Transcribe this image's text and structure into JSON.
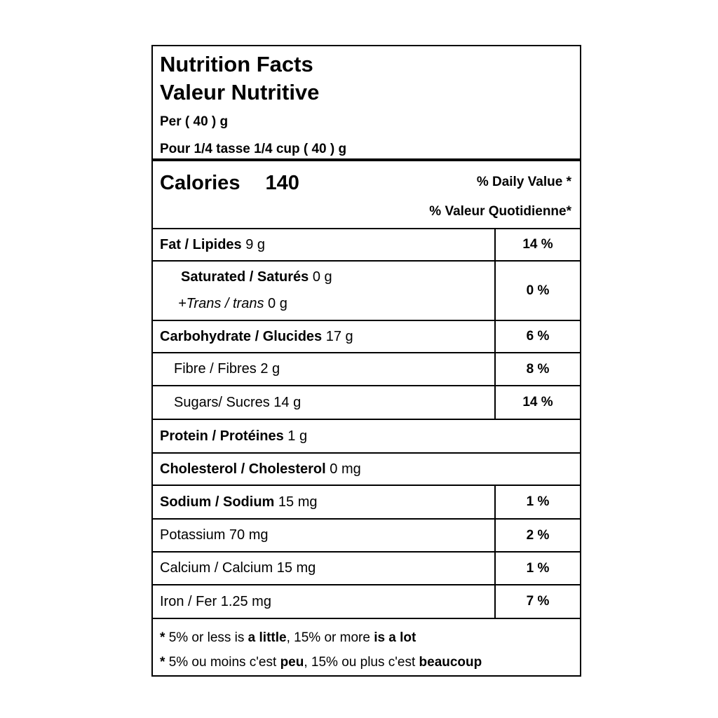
{
  "label": {
    "title_en": "Nutrition Facts",
    "title_fr": "Valeur Nutritive",
    "serving_en": "Per ( 40 ) g",
    "serving_fr": "Pour 1/4 tasse 1/4 cup ( 40 ) g",
    "calories_label": "Calories",
    "calories_value": "140",
    "daily_value_en": "% Daily Value *",
    "daily_value_fr": "% Valeur Quotidienne*"
  },
  "rows": [
    {
      "name": "Fat / Lipides",
      "amount": " 9 g",
      "percent": "14 %"
    },
    {
      "line1_name": "Saturated / Saturés",
      "line1_amount": " 0 g",
      "line2_name": "+Trans / trans",
      "line2_amount": " 0 g",
      "percent": "0 %"
    },
    {
      "name": "Carbohydrate / Glucides",
      "amount": " 17 g",
      "percent": "6 %"
    },
    {
      "name": "Fibre / Fibres",
      "amount": " 2 g",
      "percent": "8 %"
    },
    {
      "name": "Sugars/ Sucres",
      "amount": " 14 g",
      "percent": "14 %"
    },
    {
      "name": "Protein / Protéines",
      "amount": " 1 g",
      "percent": ""
    },
    {
      "name": "Cholesterol / Cholesterol",
      "amount": " 0 mg",
      "percent": ""
    },
    {
      "name": "Sodium / Sodium",
      "amount": " 15 mg",
      "percent": "1 %"
    },
    {
      "name": "Potassium",
      "amount": " 70 mg",
      "percent": "2 %"
    },
    {
      "name": "Calcium / Calcium",
      "amount": " 15 mg",
      "percent": "1 %"
    },
    {
      "name": "Iron / Fer",
      "amount": " 1.25 mg",
      "percent": "7 %"
    }
  ],
  "footnote": {
    "star": "* ",
    "en_seg1": "5% or less is ",
    "en_bold1": "a little",
    "en_seg2": ", 15% or more ",
    "en_bold2": "is a lot",
    "fr_seg1": "5% ou moins c'est ",
    "fr_bold1": "peu",
    "fr_seg2": ", 15% ou plus c'est ",
    "fr_bold2": "beaucoup"
  },
  "colors": {
    "border": "#000000",
    "text": "#000000",
    "background": "#ffffff"
  }
}
